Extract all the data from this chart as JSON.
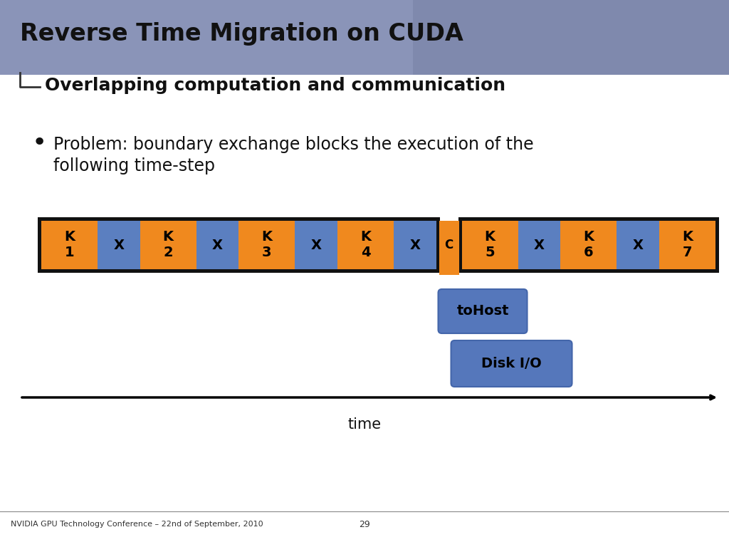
{
  "title": "Reverse Time Migration on CUDA",
  "subtitle": "Overlapping computation and communication",
  "bullet_line1": "Problem: boundary exchange blocks the execution of the",
  "bullet_line2": "following time-step",
  "header_bg": "#8a94b8",
  "body_bg": "#ffffff",
  "orange_color": "#f0891e",
  "blue_color": "#5b7fc0",
  "dark_blue_box": "#5577bb",
  "black": "#111111",
  "left_blocks": [
    {
      "label": "K\n1",
      "type": "orange"
    },
    {
      "label": "X",
      "type": "blue"
    },
    {
      "label": "K\n2",
      "type": "orange"
    },
    {
      "label": "X",
      "type": "blue"
    },
    {
      "label": "K\n3",
      "type": "orange"
    },
    {
      "label": "X",
      "type": "blue"
    },
    {
      "label": "K\n4",
      "type": "orange"
    },
    {
      "label": "X",
      "type": "blue"
    }
  ],
  "connector_label": "C",
  "right_blocks": [
    {
      "label": "K\n5",
      "type": "orange"
    },
    {
      "label": "X",
      "type": "blue"
    },
    {
      "label": "K\n6",
      "type": "orange"
    },
    {
      "label": "X",
      "type": "blue"
    },
    {
      "label": "K\n7",
      "type": "orange"
    }
  ],
  "footer_text": "NVIDIA GPU Technology Conference – 22nd of September, 2010",
  "page_number": "29"
}
